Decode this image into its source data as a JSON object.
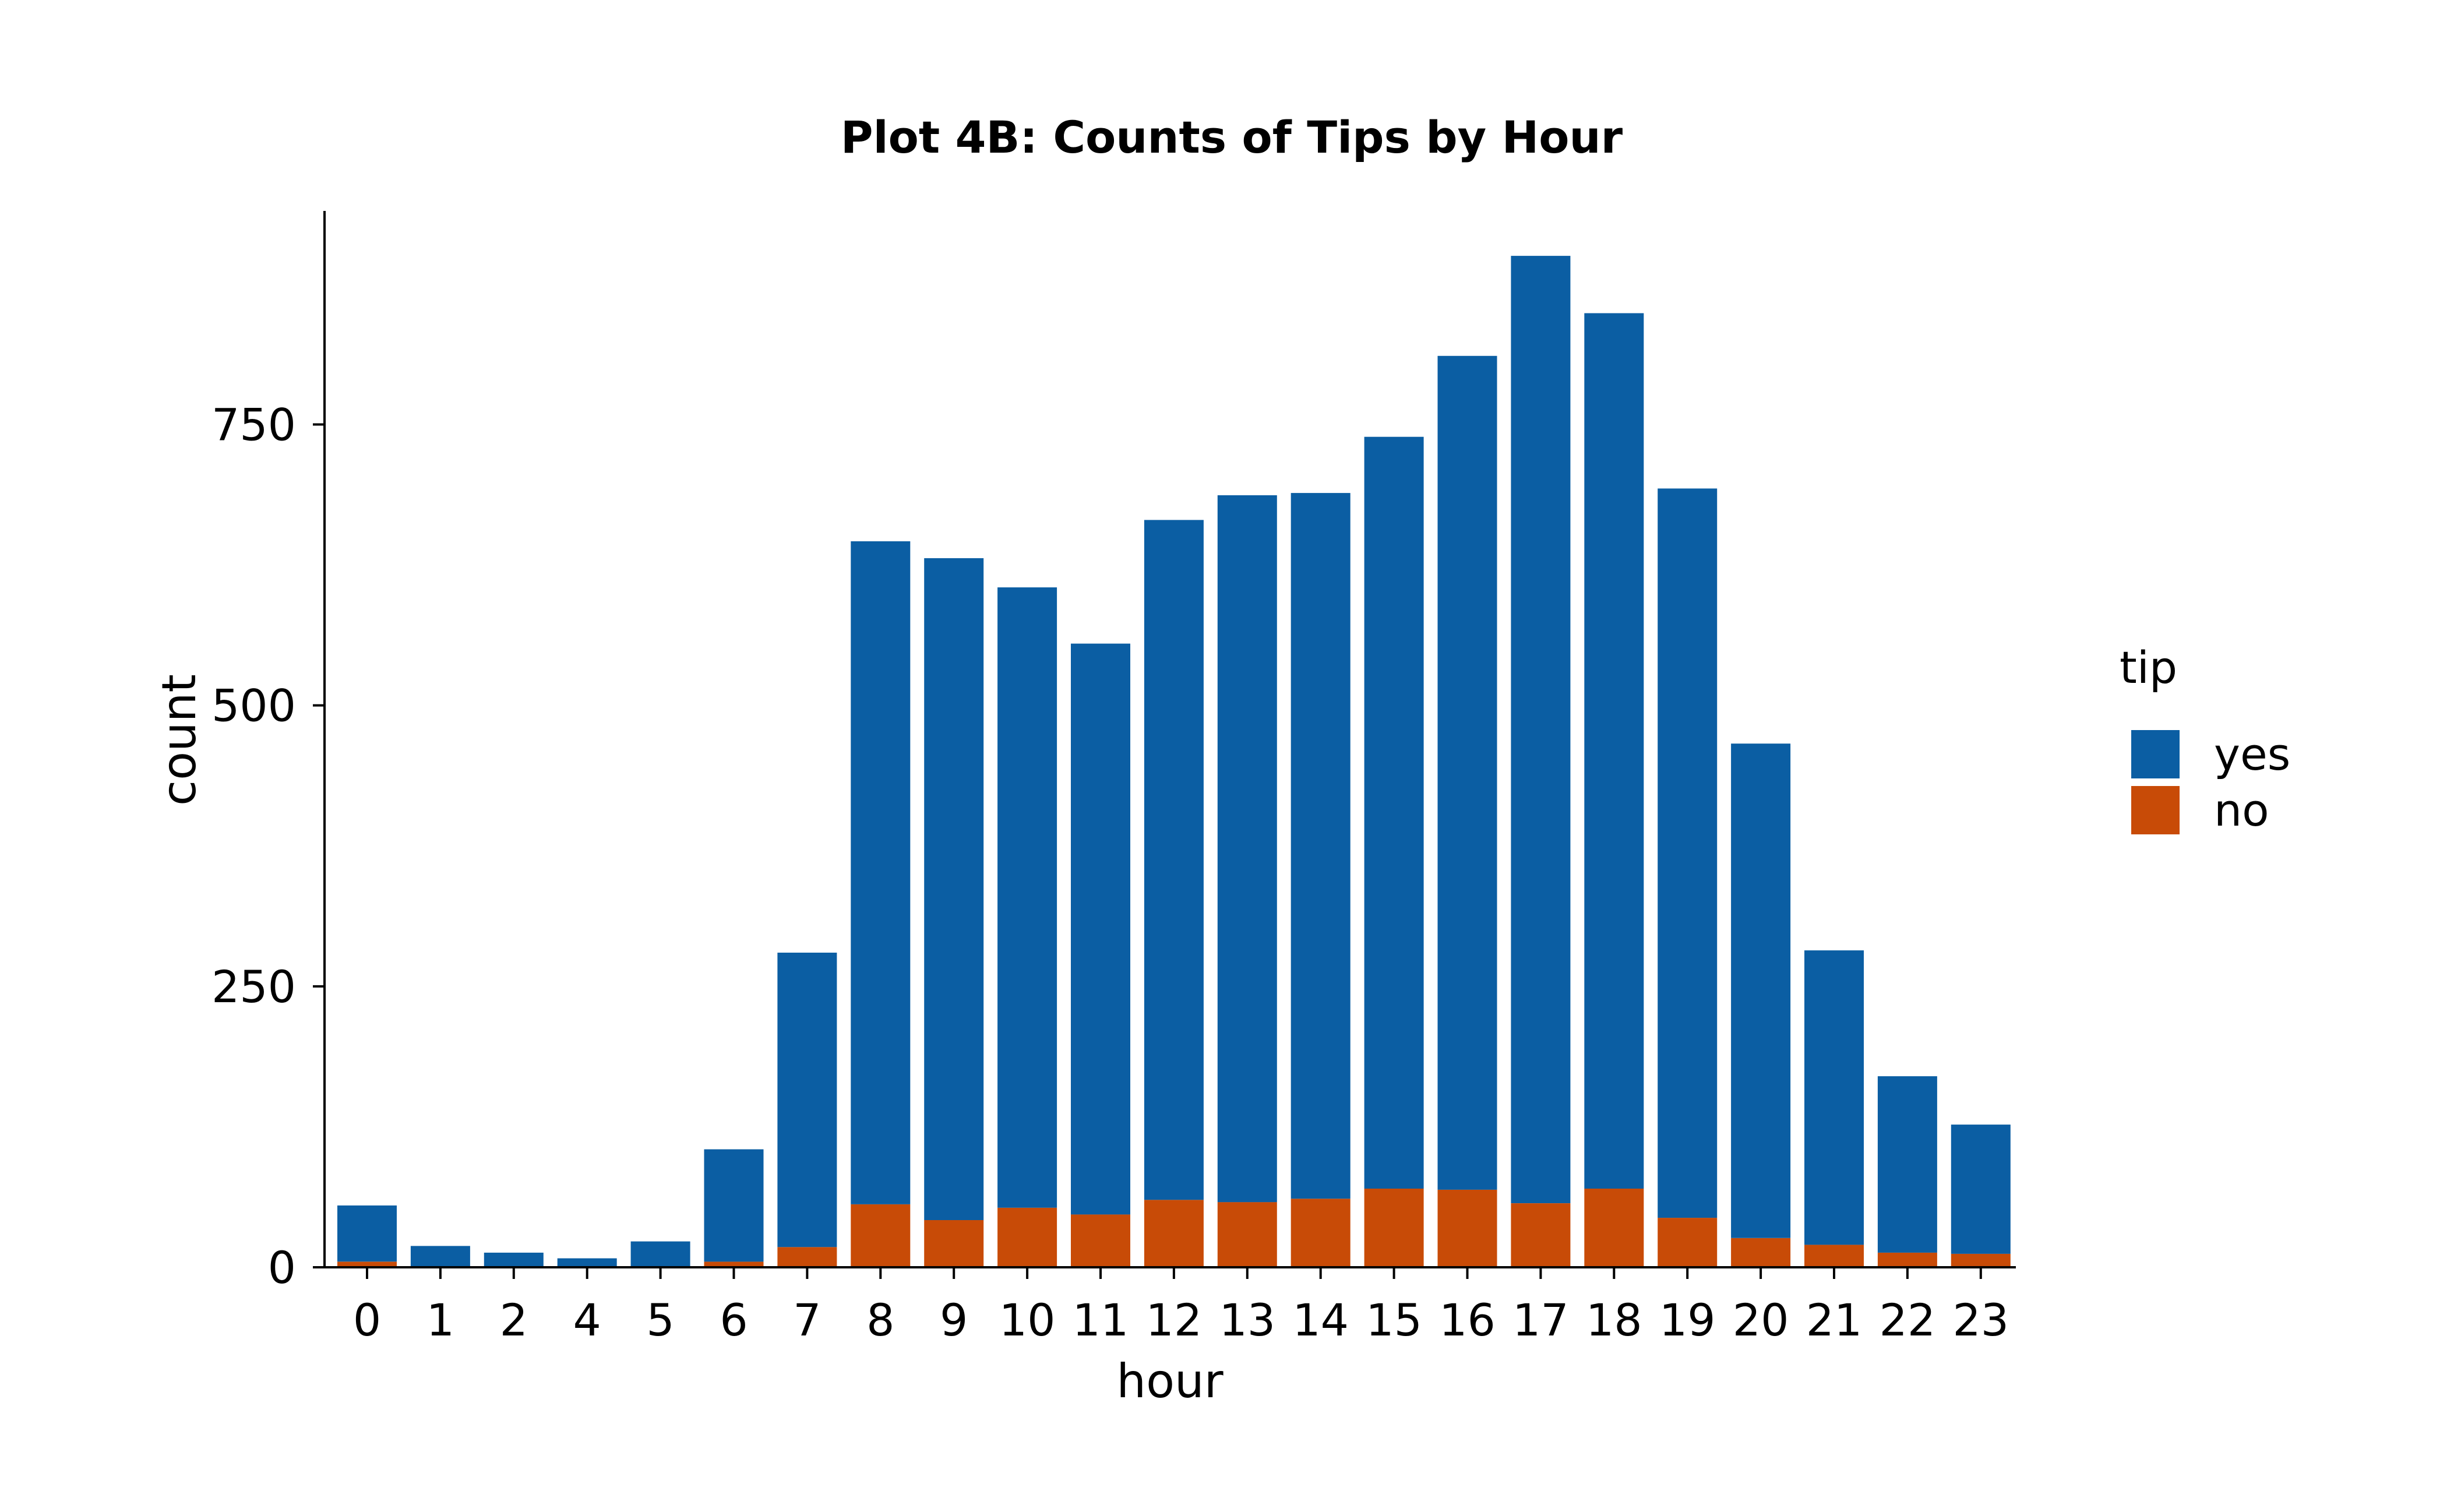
{
  "chart_data": {
    "type": "bar",
    "stacked": true,
    "title": "Plot 4B: Counts of Tips by Hour",
    "xlabel": "hour",
    "ylabel": "count",
    "categories": [
      "0",
      "1",
      "2",
      "4",
      "5",
      "6",
      "7",
      "8",
      "9",
      "10",
      "11",
      "12",
      "13",
      "14",
      "15",
      "16",
      "17",
      "18",
      "19",
      "20",
      "21",
      "22",
      "23"
    ],
    "series": [
      {
        "name": "no",
        "color": "#c84b07",
        "values": [
          5,
          1,
          0,
          0,
          1,
          5,
          18,
          56,
          42,
          53,
          47,
          60,
          58,
          61,
          70,
          69,
          57,
          70,
          44,
          26,
          20,
          13,
          12
        ]
      },
      {
        "name": "yes",
        "color": "#0b5ea3",
        "values": [
          50,
          18,
          13,
          8,
          22,
          100,
          262,
          590,
          589,
          552,
          508,
          605,
          629,
          628,
          669,
          742,
          843,
          779,
          649,
          440,
          262,
          157,
          115
        ]
      }
    ],
    "ylim": [
      0,
      940
    ],
    "yticks": [
      "0",
      "250",
      "500",
      "750"
    ],
    "ytick_values": [
      0,
      250,
      500,
      750
    ],
    "grid": false,
    "legend": {
      "title": "tip",
      "placement": "right",
      "entries": [
        {
          "label": "yes",
          "color": "#0b5ea3"
        },
        {
          "label": "no",
          "color": "#c84b07"
        }
      ]
    }
  }
}
